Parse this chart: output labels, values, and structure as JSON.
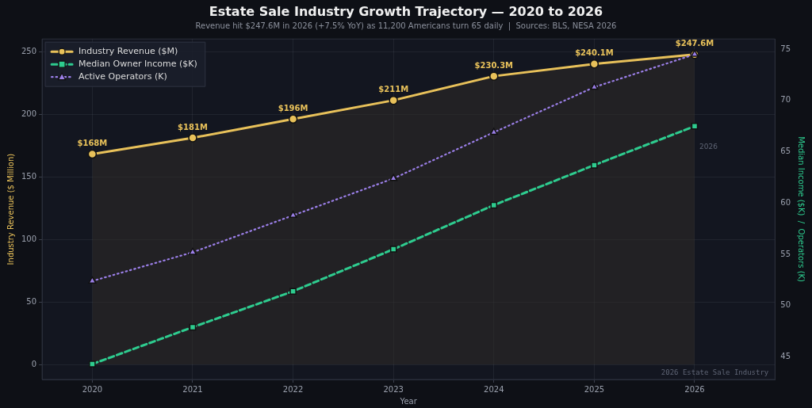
{
  "chart_data": {
    "type": "line",
    "title": "Estate Sale Industry Growth Trajectory — 2020 to 2026",
    "subtitle": "Revenue hit $247.6M in 2026 (+7.5% YoY) as 11,200 Americans turn 65 daily  |  Sources: BLS, NESA 2026",
    "xlabel": "Year",
    "ylabel": "Industry Revenue ($ Million)",
    "y2label": "Median Income ($K)  /  Operators (K)",
    "x": [
      2020,
      2021,
      2022,
      2023,
      2024,
      2025,
      2026
    ],
    "xlim": [
      2019.5,
      2026.8
    ],
    "xticks": [
      2020,
      2021,
      2022,
      2023,
      2024,
      2025,
      2026
    ],
    "ylim": [
      -12,
      260
    ],
    "yticks": [
      0,
      50,
      100,
      150,
      200,
      250
    ],
    "y2lim": [
      42.8,
      76
    ],
    "y2ticks": [
      45,
      50,
      55,
      60,
      65,
      70,
      75
    ],
    "series": [
      {
        "name": "Industry Revenue ($M)",
        "type": "area",
        "color": "#e8c15a",
        "marker": "circle",
        "line_style": "solid",
        "values": [
          168,
          181,
          196,
          211,
          230.3,
          240.1,
          247.6
        ],
        "value_labels": [
          "$168M",
          "$181M",
          "$196M",
          "$211M",
          "$230.3M",
          "$240.1M",
          "$247.6M"
        ]
      },
      {
        "name": "Median Owner Income ($K)",
        "axis": "y2",
        "color": "#2ecc8f",
        "marker": "square",
        "line_style": "dashed",
        "values": [
          44.3,
          47.9,
          51.4,
          55.5,
          59.8,
          63.7,
          67.5
        ]
      },
      {
        "name": "Active Operators (K)",
        "axis": "y2",
        "color": "#9b7fe8",
        "marker": "triangle",
        "line_style": "dotted",
        "values": [
          52.4,
          55.2,
          58.8,
          62.4,
          66.9,
          71.3,
          74.5
        ]
      }
    ],
    "annotations": [
      "2026",
      "2026 Estate Sale Industry"
    ],
    "grid": true,
    "legend": "top left"
  }
}
